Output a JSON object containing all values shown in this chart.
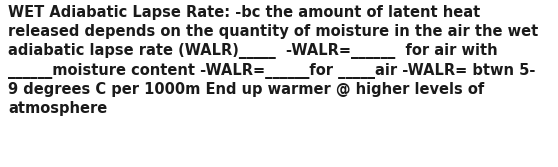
{
  "text": "WET Adiabatic Lapse Rate: -bc the amount of latent heat\nreleased depends on the quantity of moisture in the air the wet\nadiabatic lapse rate (WALR)_____  -WALR=______  for air with\n______moisture content -WALR=______for _____air -WALR= btwn 5-\n9 degrees C per 1000m End up warmer @ higher levels of\natmosphere",
  "background_color": "#ffffff",
  "text_color": "#1a1a1a",
  "font_size": 10.5,
  "font_weight": "bold",
  "fig_width": 5.58,
  "fig_height": 1.67,
  "dpi": 100
}
